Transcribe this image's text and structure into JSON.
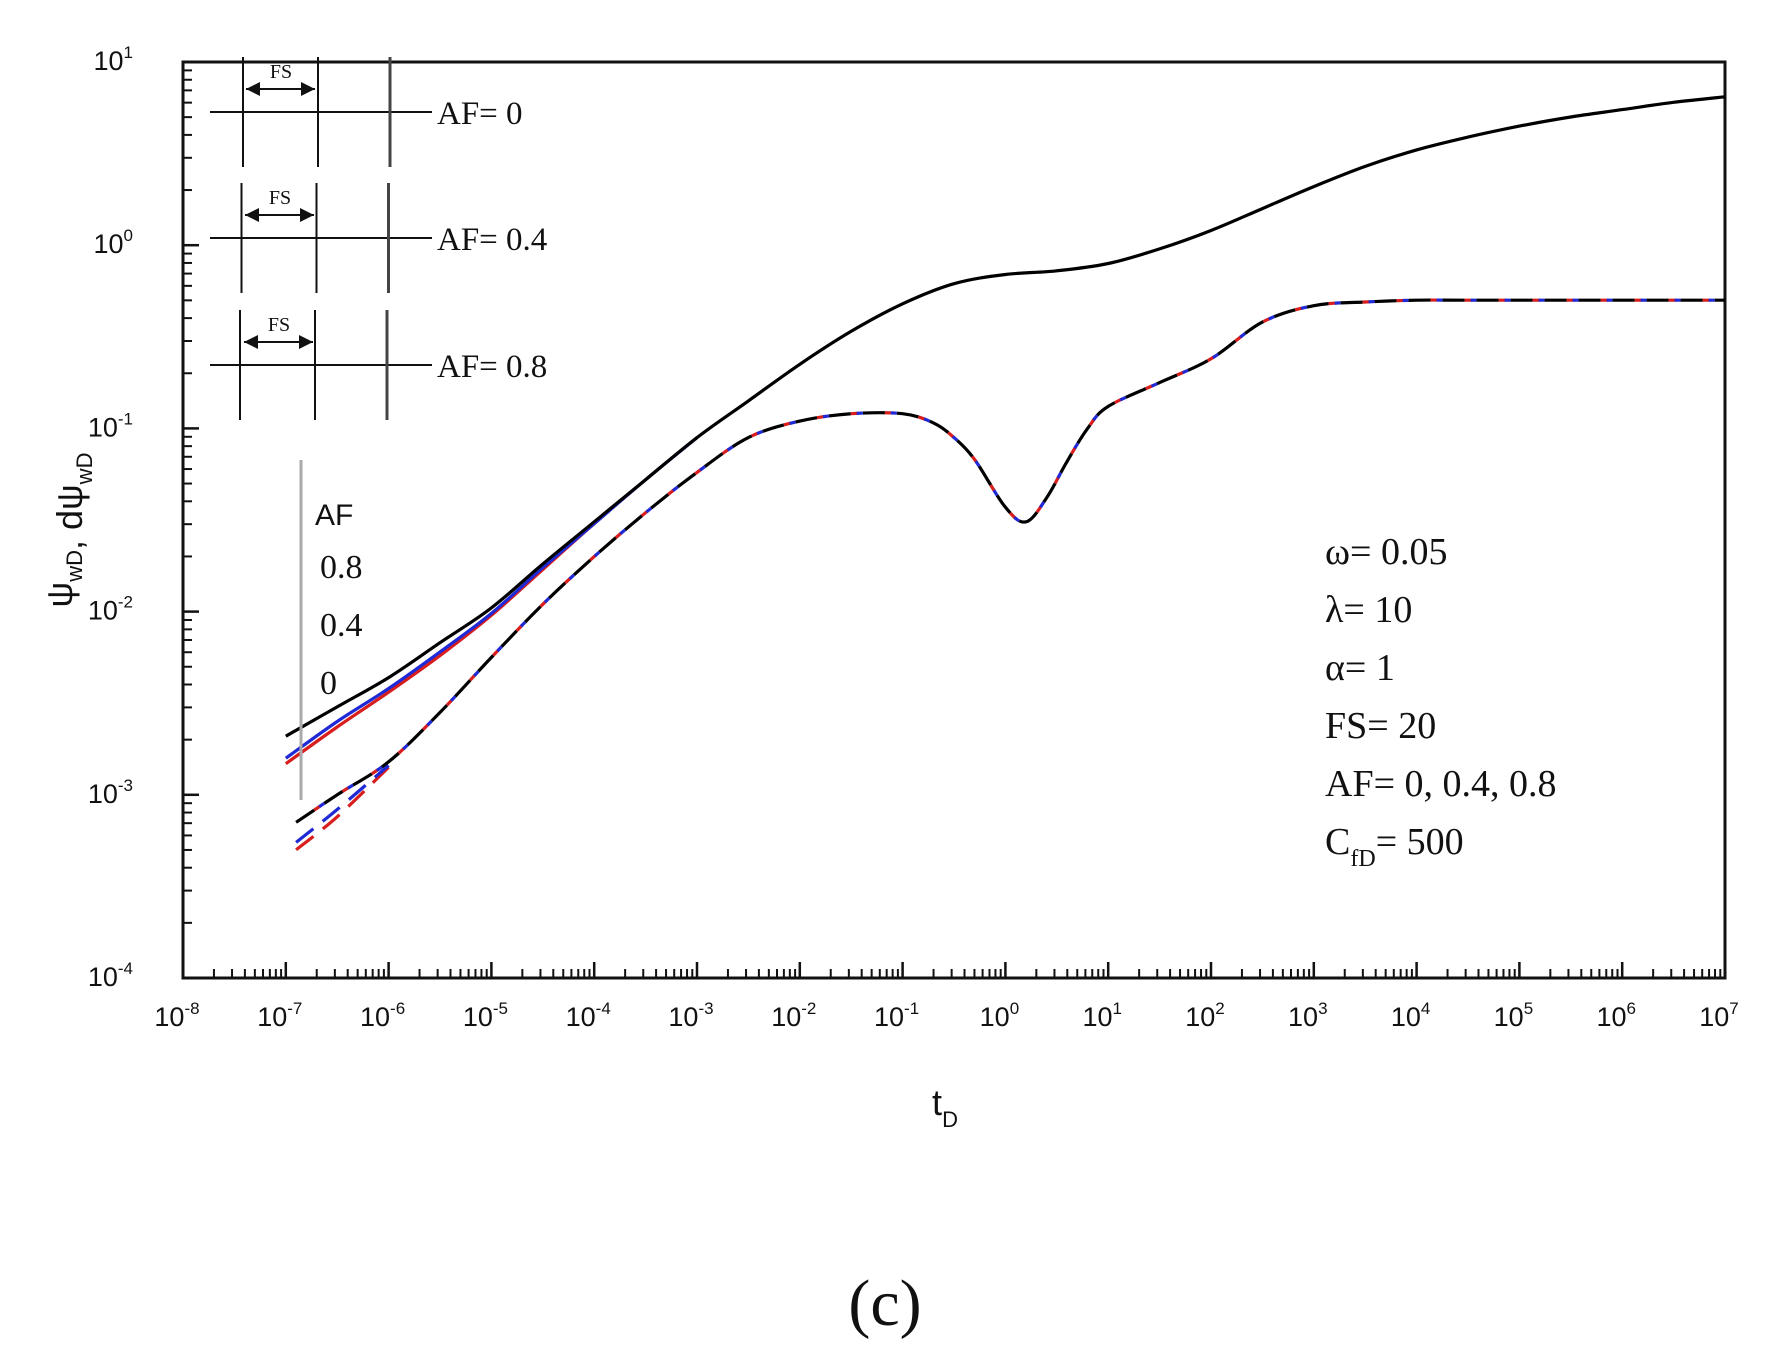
{
  "chart_data": {
    "type": "line",
    "xscale": "log",
    "yscale": "log",
    "xlabel": "t",
    "xlabel_sub": "D",
    "ylabel_parts": [
      {
        "t": "ψ",
        "sub": "wD"
      },
      {
        "t": ", dψ",
        "sub": "wD"
      }
    ],
    "xlim": [
      1e-08,
      10000000.0
    ],
    "ylim": [
      0.0001,
      10
    ],
    "xticks": [
      {
        "base": "10",
        "exp": "-8",
        "value": -8
      },
      {
        "base": "10",
        "exp": "-7",
        "value": -7
      },
      {
        "base": "10",
        "exp": "-6",
        "value": -6
      },
      {
        "base": "10",
        "exp": "-5",
        "value": -5
      },
      {
        "base": "10",
        "exp": "-4",
        "value": -4
      },
      {
        "base": "10",
        "exp": "-3",
        "value": -3
      },
      {
        "base": "10",
        "exp": "-2",
        "value": -2
      },
      {
        "base": "10",
        "exp": "-1",
        "value": -1
      },
      {
        "base": "10",
        "exp": "0",
        "value": 0
      },
      {
        "base": "10",
        "exp": "1",
        "value": 1
      },
      {
        "base": "10",
        "exp": "2",
        "value": 2
      },
      {
        "base": "10",
        "exp": "3",
        "value": 3
      },
      {
        "base": "10",
        "exp": "4",
        "value": 4
      },
      {
        "base": "10",
        "exp": "5",
        "value": 5
      },
      {
        "base": "10",
        "exp": "6",
        "value": 6
      },
      {
        "base": "10",
        "exp": "7",
        "value": 7
      }
    ],
    "yticks": [
      {
        "base": "10",
        "exp": "-4",
        "value": -4
      },
      {
        "base": "10",
        "exp": "-3",
        "value": -3
      },
      {
        "base": "10",
        "exp": "-2",
        "value": -2
      },
      {
        "base": "10",
        "exp": "-1",
        "value": -1
      },
      {
        "base": "10",
        "exp": "0",
        "value": 0
      },
      {
        "base": "10",
        "exp": "1",
        "value": 1
      }
    ],
    "series": [
      {
        "name": "ψwD, AF = 0",
        "style": "solid",
        "color": "#000000",
        "log_x": [
          -7,
          -6.5,
          -6,
          -5.5,
          -5,
          -4.5,
          -4,
          -3.5,
          -3,
          -2.5,
          -2,
          -1.5,
          -1,
          -0.5,
          0,
          0.5,
          1,
          1.5,
          2,
          2.5,
          3,
          3.5,
          4,
          4.5,
          5,
          5.5,
          6,
          6.5,
          7
        ],
        "log_y": [
          -2.68,
          -2.52,
          -2.36,
          -2.17,
          -1.98,
          -1.74,
          -1.51,
          -1.28,
          -1.05,
          -0.85,
          -0.65,
          -0.47,
          -0.32,
          -0.21,
          -0.16,
          -0.14,
          -0.1,
          -0.02,
          0.08,
          0.2,
          0.32,
          0.43,
          0.52,
          0.59,
          0.65,
          0.7,
          0.74,
          0.78,
          0.81
        ]
      },
      {
        "name": "ψwD, AF = 0.4",
        "style": "solid",
        "color": "#1f2ad6",
        "log_x": [
          -7,
          -6.5,
          -6,
          -5.5,
          -5,
          -4.5,
          -4,
          -3.5,
          -3
        ],
        "log_y": [
          -2.8,
          -2.6,
          -2.42,
          -2.22,
          -2.01,
          -1.76,
          -1.52,
          -1.28,
          -1.05
        ]
      },
      {
        "name": "ψwD, AF = 0.8",
        "style": "solid",
        "color": "#d81d1d",
        "log_x": [
          -7,
          -6.5,
          -6,
          -5.5,
          -5,
          -4.5,
          -4,
          -3.5,
          -3
        ],
        "log_y": [
          -2.83,
          -2.63,
          -2.44,
          -2.24,
          -2.02,
          -1.77,
          -1.52,
          -1.28,
          -1.05
        ]
      },
      {
        "name": "dψwD, AF = 0",
        "style": "dashed",
        "color": "#000000",
        "log_x": [
          -6.9,
          -6.5,
          -6,
          -5.5,
          -5,
          -4.5,
          -4,
          -3.5,
          -3,
          -2.5,
          -2,
          -1.5,
          -1,
          -0.7,
          -0.5,
          -0.3,
          0,
          0.2,
          0.4,
          0.6,
          0.8,
          1,
          1.5,
          2,
          2.5,
          3,
          3.5,
          4,
          4.5,
          5,
          5.5,
          6,
          6.5,
          7
        ],
        "log_y": [
          -3.15,
          -3.0,
          -2.82,
          -2.55,
          -2.25,
          -1.96,
          -1.7,
          -1.46,
          -1.24,
          -1.05,
          -0.96,
          -0.92,
          -0.92,
          -0.97,
          -1.05,
          -1.17,
          -1.43,
          -1.51,
          -1.38,
          -1.18,
          -1.0,
          -0.88,
          -0.75,
          -0.62,
          -0.42,
          -0.33,
          -0.31,
          -0.3,
          -0.3,
          -0.3,
          -0.3,
          -0.3,
          -0.3,
          -0.3
        ]
      },
      {
        "name": "dψwD, AF = 0.4",
        "style": "dashed",
        "color": "#1f2ad6",
        "log_x": [
          -6.9,
          -6.5,
          -6
        ],
        "log_y": [
          -3.26,
          -3.08,
          -2.84
        ]
      },
      {
        "name": "dψwD, AF = 0.8",
        "style": "dashed",
        "color": "#d81d1d",
        "log_x": [
          -6.9,
          -6.5,
          -6
        ],
        "log_y": [
          -3.3,
          -3.12,
          -2.85
        ]
      }
    ],
    "legend": {
      "position": "left",
      "title": "AF",
      "entries": [
        "0.8",
        "0.4",
        "0"
      ]
    },
    "schematic": [
      {
        "fs_label": "FS",
        "af_label": "AF= 0"
      },
      {
        "fs_label": "FS",
        "af_label": "AF= 0.4"
      },
      {
        "fs_label": "FS",
        "af_label": "AF= 0.8"
      }
    ],
    "parameters": [
      {
        "text": "ω= 0.05"
      },
      {
        "text": "λ= 10"
      },
      {
        "text": "α= 1"
      },
      {
        "text": "FS= 20"
      },
      {
        "text": "AF= 0, 0.4, 0.8"
      },
      {
        "text": "C",
        "sub": "fD",
        "rest": "= 500"
      }
    ],
    "caption": "(c)"
  }
}
